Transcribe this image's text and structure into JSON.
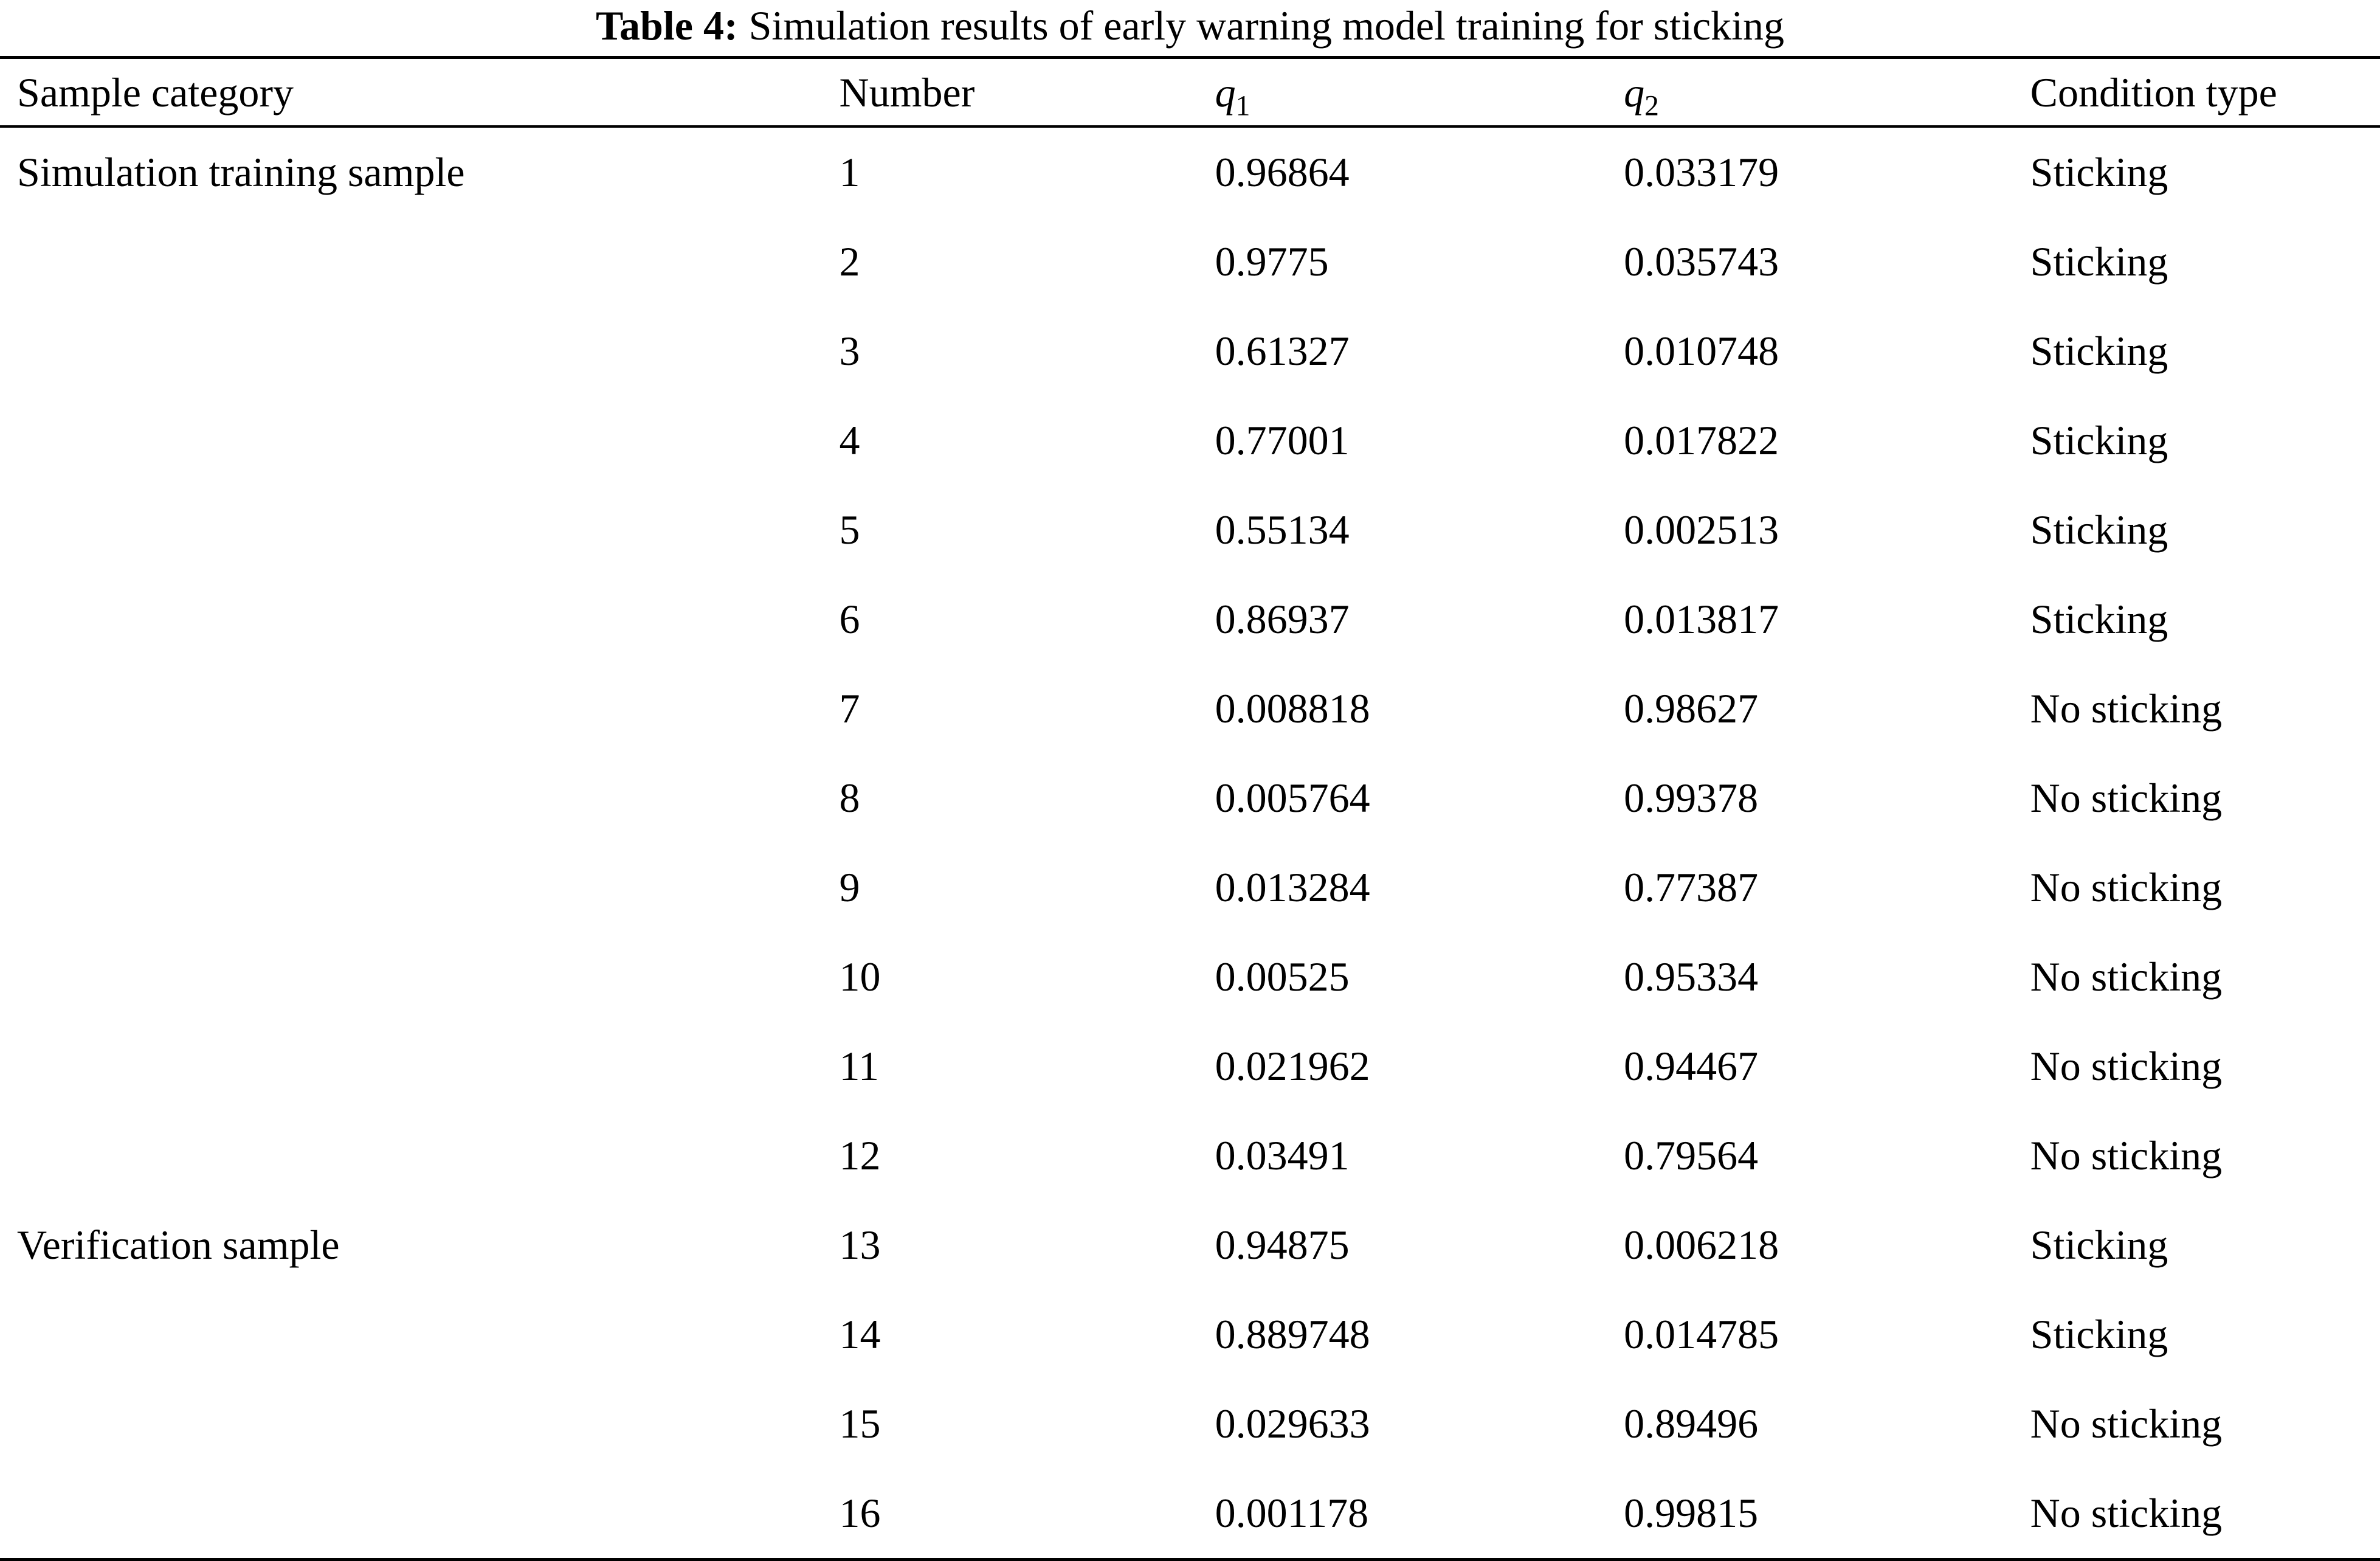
{
  "page": {
    "background": "#ffffff",
    "text_color": "#000000"
  },
  "table": {
    "title_label": "Table 4:",
    "title_text": "Simulation results of early warning model training for sticking",
    "headers": {
      "category": "Sample category",
      "number": "Number",
      "q1": {
        "base": "q",
        "sub": "1"
      },
      "q2": {
        "base": "q",
        "sub": "2"
      },
      "condition": "Condition type"
    },
    "rows": [
      {
        "category": "Simulation training sample",
        "number": "1",
        "q1": "0.96864",
        "q2": "0.033179",
        "condition": "Sticking"
      },
      {
        "category": "",
        "number": "2",
        "q1": "0.9775",
        "q2": "0.035743",
        "condition": "Sticking"
      },
      {
        "category": "",
        "number": "3",
        "q1": "0.61327",
        "q2": "0.010748",
        "condition": "Sticking"
      },
      {
        "category": "",
        "number": "4",
        "q1": "0.77001",
        "q2": "0.017822",
        "condition": "Sticking"
      },
      {
        "category": "",
        "number": "5",
        "q1": "0.55134",
        "q2": "0.002513",
        "condition": "Sticking"
      },
      {
        "category": "",
        "number": "6",
        "q1": "0.86937",
        "q2": "0.013817",
        "condition": "Sticking"
      },
      {
        "category": "",
        "number": "7",
        "q1": "0.008818",
        "q2": "0.98627",
        "condition": "No sticking"
      },
      {
        "category": "",
        "number": "8",
        "q1": "0.005764",
        "q2": "0.99378",
        "condition": "No sticking"
      },
      {
        "category": "",
        "number": "9",
        "q1": "0.013284",
        "q2": "0.77387",
        "condition": "No sticking"
      },
      {
        "category": "",
        "number": "10",
        "q1": "0.00525",
        "q2": "0.95334",
        "condition": "No sticking"
      },
      {
        "category": "",
        "number": "11",
        "q1": "0.021962",
        "q2": "0.94467",
        "condition": "No sticking"
      },
      {
        "category": "",
        "number": "12",
        "q1": "0.03491",
        "q2": "0.79564",
        "condition": "No sticking"
      },
      {
        "category": "Verification sample",
        "number": "13",
        "q1": "0.94875",
        "q2": "0.006218",
        "condition": "Sticking"
      },
      {
        "category": "",
        "number": "14",
        "q1": "0.889748",
        "q2": "0.014785",
        "condition": "Sticking"
      },
      {
        "category": "",
        "number": "15",
        "q1": "0.029633",
        "q2": "0.89496",
        "condition": "No sticking"
      },
      {
        "category": "",
        "number": "16",
        "q1": "0.001178",
        "q2": "0.99815",
        "condition": "No sticking"
      }
    ]
  }
}
